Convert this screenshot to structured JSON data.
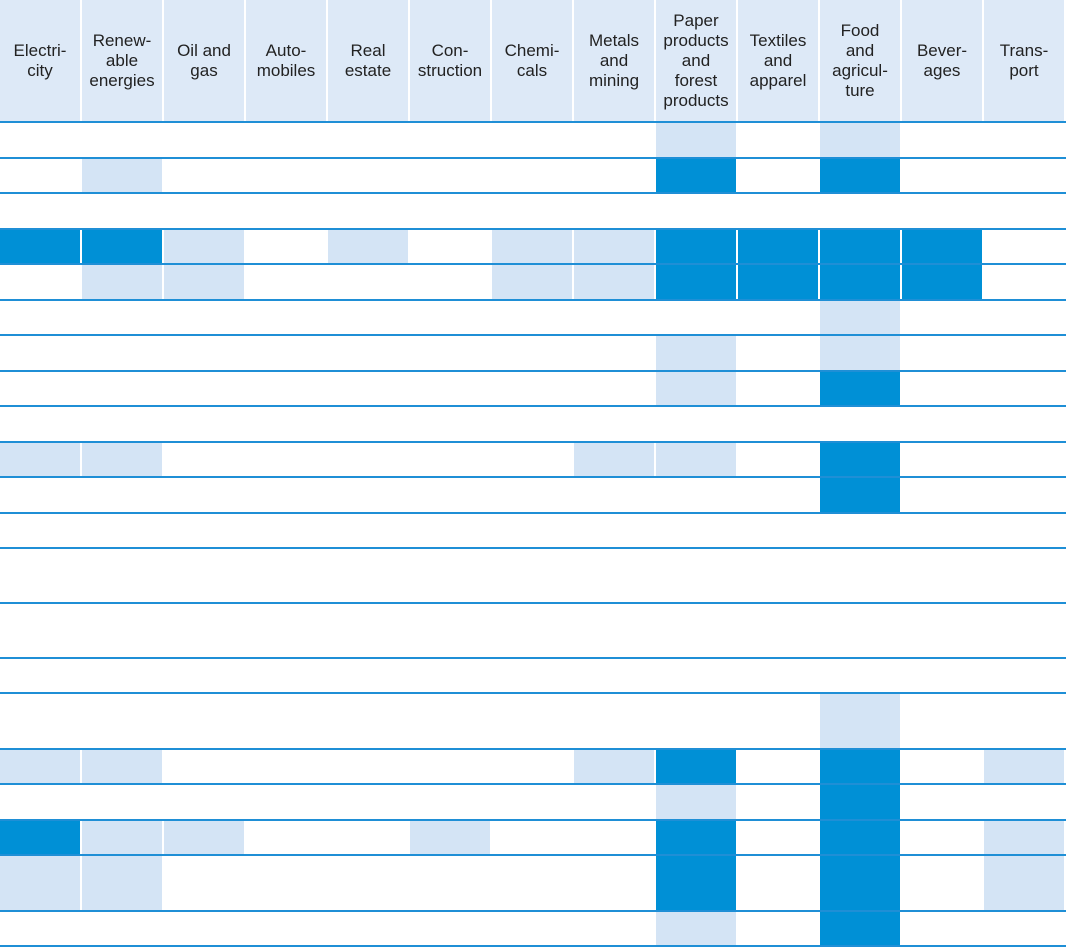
{
  "chart_data": {
    "type": "heatmap",
    "title": "",
    "categories": [
      "Electri-\ncity",
      "Renew-\nable\nenergies",
      "Oil and\ngas",
      "Auto-\nmobiles",
      "Real\nestate",
      "Con-\nstruction",
      "Chemi-\ncals",
      "Metals\nand\nmining",
      "Paper\nproducts\nand\nforest\nproducts",
      "Textiles\nand\napparel",
      "Food\nand\nagricul-\nture",
      "Bever-\nages",
      "Trans-\nport"
    ],
    "levels": {
      "0": "none",
      "1": "light",
      "2": "dark"
    },
    "colors": {
      "none": "#ffffff",
      "light": "#d4e4f5",
      "dark": "#0090d6",
      "header_bg": "#dde9f7",
      "gridline": "#1f8fd6"
    },
    "rows": [
      [
        0,
        0,
        0,
        0,
        0,
        0,
        0,
        0,
        1,
        0,
        1,
        0,
        0
      ],
      [
        0,
        1,
        0,
        0,
        0,
        0,
        0,
        0,
        2,
        0,
        2,
        0,
        0
      ],
      [
        0,
        0,
        0,
        0,
        0,
        0,
        0,
        0,
        0,
        0,
        0,
        0,
        0
      ],
      [
        2,
        2,
        1,
        0,
        1,
        0,
        1,
        1,
        2,
        2,
        2,
        2,
        0
      ],
      [
        0,
        1,
        1,
        0,
        0,
        0,
        1,
        1,
        2,
        2,
        2,
        2,
        0
      ],
      [
        0,
        0,
        0,
        0,
        0,
        0,
        0,
        0,
        0,
        0,
        1,
        0,
        0
      ],
      [
        0,
        0,
        0,
        0,
        0,
        0,
        0,
        0,
        1,
        0,
        1,
        0,
        0
      ],
      [
        0,
        0,
        0,
        0,
        0,
        0,
        0,
        0,
        1,
        0,
        2,
        0,
        0
      ],
      [
        0,
        0,
        0,
        0,
        0,
        0,
        0,
        0,
        0,
        0,
        0,
        0,
        0
      ],
      [
        1,
        1,
        0,
        0,
        0,
        0,
        0,
        1,
        1,
        0,
        2,
        0,
        0
      ],
      [
        0,
        0,
        0,
        0,
        0,
        0,
        0,
        0,
        0,
        0,
        2,
        0,
        0
      ],
      [
        0,
        0,
        0,
        0,
        0,
        0,
        0,
        0,
        0,
        0,
        0,
        0,
        0
      ],
      [
        0,
        0,
        0,
        0,
        0,
        0,
        0,
        0,
        0,
        0,
        0,
        0,
        0
      ],
      [
        0,
        0,
        0,
        0,
        0,
        0,
        0,
        0,
        0,
        0,
        0,
        0,
        0
      ],
      [
        0,
        0,
        0,
        0,
        0,
        0,
        0,
        0,
        0,
        0,
        0,
        0,
        0
      ],
      [
        0,
        0,
        0,
        0,
        0,
        0,
        0,
        0,
        0,
        0,
        1,
        0,
        0
      ],
      [
        1,
        1,
        0,
        0,
        0,
        0,
        0,
        1,
        2,
        0,
        2,
        0,
        1
      ],
      [
        0,
        0,
        0,
        0,
        0,
        0,
        0,
        0,
        1,
        0,
        2,
        0,
        0
      ],
      [
        2,
        1,
        1,
        0,
        0,
        1,
        0,
        0,
        2,
        0,
        2,
        0,
        1
      ],
      [
        1,
        1,
        0,
        0,
        0,
        0,
        0,
        0,
        2,
        0,
        2,
        0,
        1
      ],
      [
        0,
        0,
        0,
        0,
        0,
        0,
        0,
        0,
        1,
        0,
        2,
        0,
        0
      ]
    ]
  }
}
